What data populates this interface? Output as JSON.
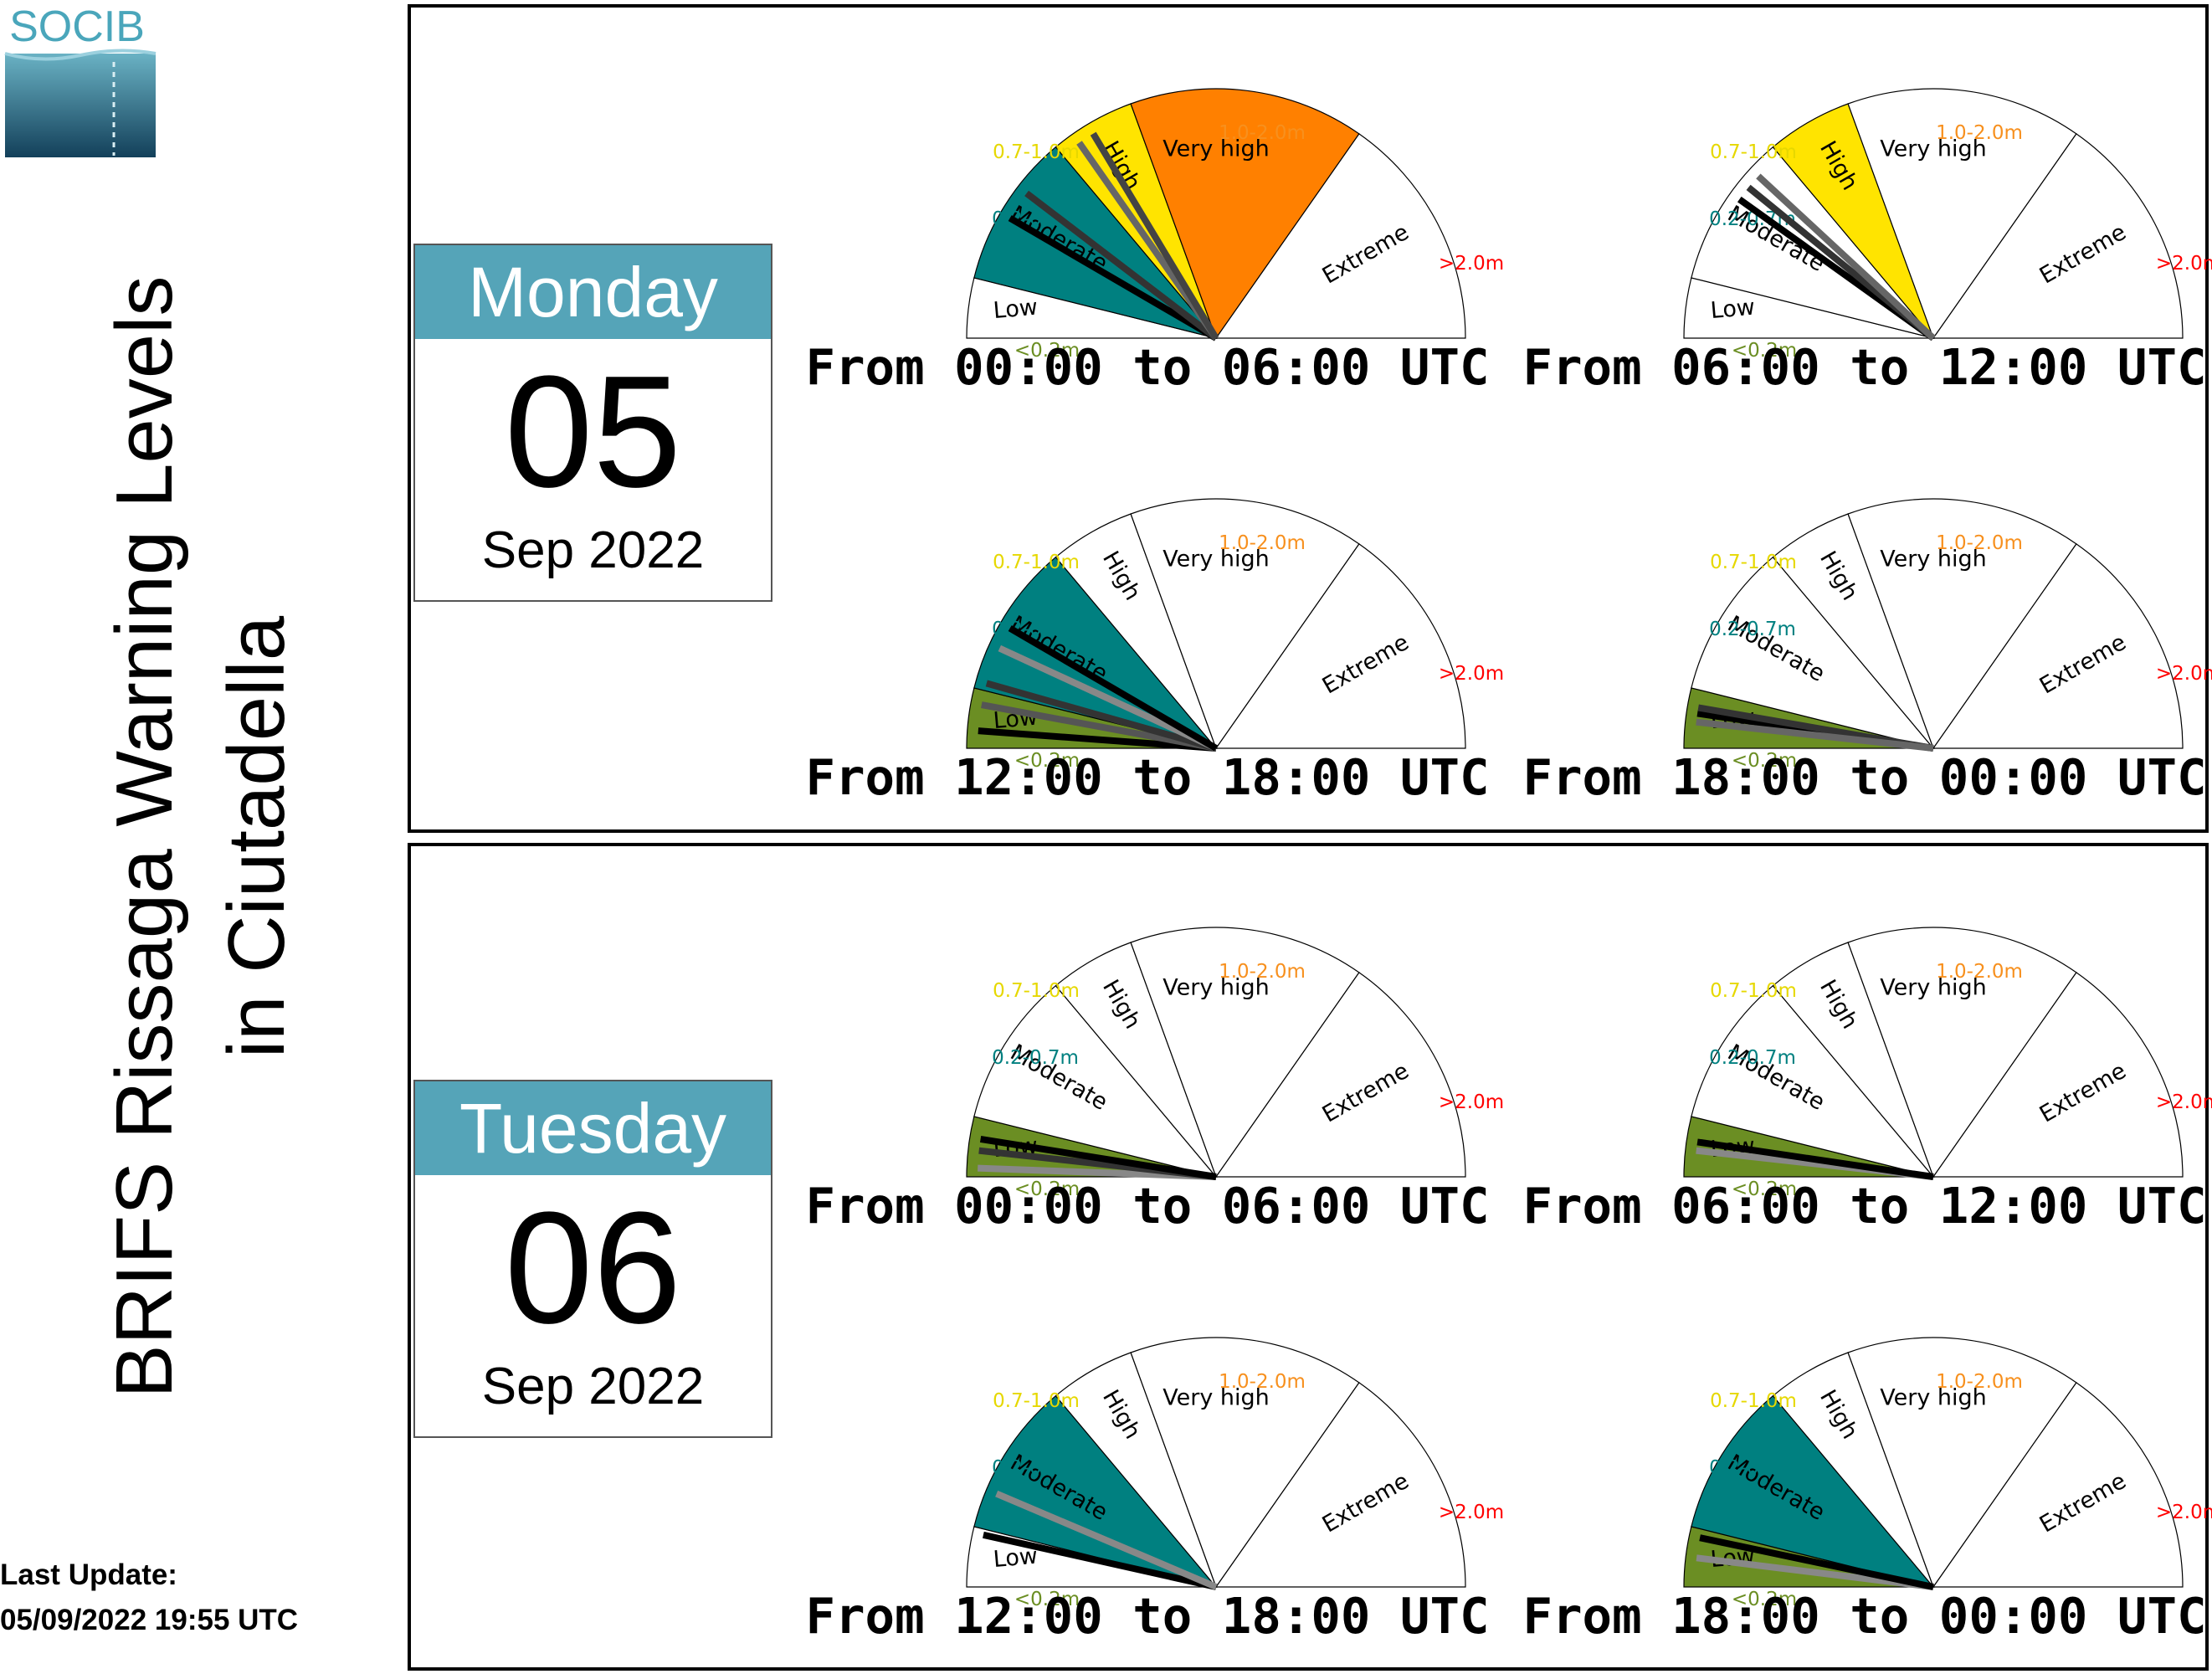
{
  "header": {
    "logo_text": "SOCIB",
    "title_line1": "BRIFS Rissaga Warning Levels",
    "title_line2": "in Ciutadella"
  },
  "last_update": {
    "label": "Last Update:",
    "value": "05/09/2022 19:55 UTC"
  },
  "colors": {
    "low": "#6b8e23",
    "moderate": "#008080",
    "high": "#ffe400",
    "very_high": "#ff8000",
    "extreme": "#ff0000",
    "date_header": "#55a4b8"
  },
  "scale": {
    "levels": [
      "Low",
      "Moderate",
      "High",
      "Very high",
      "Extreme"
    ],
    "ranges": [
      "<0.2m",
      "0.2-0.7m",
      "0.7-1.0m",
      "1.0-2.0m",
      ">2.0m"
    ],
    "level_keys": [
      "low",
      "moderate",
      "high",
      "very_high",
      "extreme"
    ]
  },
  "days": [
    {
      "weekday": "Monday",
      "day": "05",
      "month_year": "Sep 2022"
    },
    {
      "weekday": "Tuesday",
      "day": "06",
      "month_year": "Sep 2022"
    }
  ],
  "chart_data": [
    {
      "type": "gauge",
      "day": "Monday 05 Sep 2022",
      "period": "From 00:00 to 06:00 UTC",
      "highlighted_levels": [
        "Moderate",
        "High",
        "Very high"
      ],
      "needles": [
        {
          "level": 1.45,
          "color": "#000000"
        },
        {
          "level": 1.65,
          "color": "#333333"
        },
        {
          "level": 2.25,
          "color": "#666666"
        },
        {
          "level": 2.45,
          "color": "#444444"
        }
      ]
    },
    {
      "type": "gauge",
      "day": "Monday 05 Sep 2022",
      "period": "From 06:00 to 12:00 UTC",
      "highlighted_levels": [
        "High"
      ],
      "needles": [
        {
          "level": 1.6,
          "color": "#000000"
        },
        {
          "level": 1.7,
          "color": "#333333"
        },
        {
          "level": 1.8,
          "color": "#666666"
        }
      ]
    },
    {
      "type": "gauge",
      "day": "Monday 05 Sep 2022",
      "period": "From 12:00 to 18:00 UTC",
      "highlighted_levels": [
        "Low",
        "Moderate"
      ],
      "needles": [
        {
          "level": 0.3,
          "color": "#000000"
        },
        {
          "level": 0.75,
          "color": "#555555"
        },
        {
          "level": 1.05,
          "color": "#333333"
        },
        {
          "level": 1.3,
          "color": "#888888"
        },
        {
          "level": 1.45,
          "color": "#000000"
        }
      ]
    },
    {
      "type": "gauge",
      "day": "Monday 05 Sep 2022",
      "period": "From 18:00 to 00:00 UTC",
      "highlighted_levels": [
        "Low"
      ],
      "needles": [
        {
          "level": 0.6,
          "color": "#000000"
        },
        {
          "level": 0.7,
          "color": "#333333"
        },
        {
          "level": 0.45,
          "color": "#666666"
        }
      ]
    },
    {
      "type": "gauge",
      "day": "Tuesday 06 Sep 2022",
      "period": "From 00:00 to 06:00 UTC",
      "highlighted_levels": [
        "Low"
      ],
      "needles": [
        {
          "level": 0.15,
          "color": "#888888"
        },
        {
          "level": 0.45,
          "color": "#333333"
        },
        {
          "level": 0.65,
          "color": "#000000"
        }
      ]
    },
    {
      "type": "gauge",
      "day": "Tuesday 06 Sep 2022",
      "period": "From 06:00 to 12:00 UTC",
      "highlighted_levels": [
        "Low"
      ],
      "needles": [
        {
          "level": 0.45,
          "color": "#888888"
        },
        {
          "level": 0.6,
          "color": "#000000"
        }
      ]
    },
    {
      "type": "gauge",
      "day": "Tuesday 06 Sep 2022",
      "period": "From 12:00 to 18:00 UTC",
      "highlighted_levels": [
        "Moderate"
      ],
      "needles": [
        {
          "level": 0.9,
          "color": "#000000"
        },
        {
          "level": 1.25,
          "color": "#888888"
        }
      ]
    },
    {
      "type": "gauge",
      "day": "Tuesday 06 Sep 2022",
      "period": "From 18:00 to 00:00 UTC",
      "highlighted_levels": [
        "Low",
        "Moderate"
      ],
      "needles": [
        {
          "level": 0.5,
          "color": "#888888"
        },
        {
          "level": 0.85,
          "color": "#000000"
        }
      ]
    }
  ]
}
